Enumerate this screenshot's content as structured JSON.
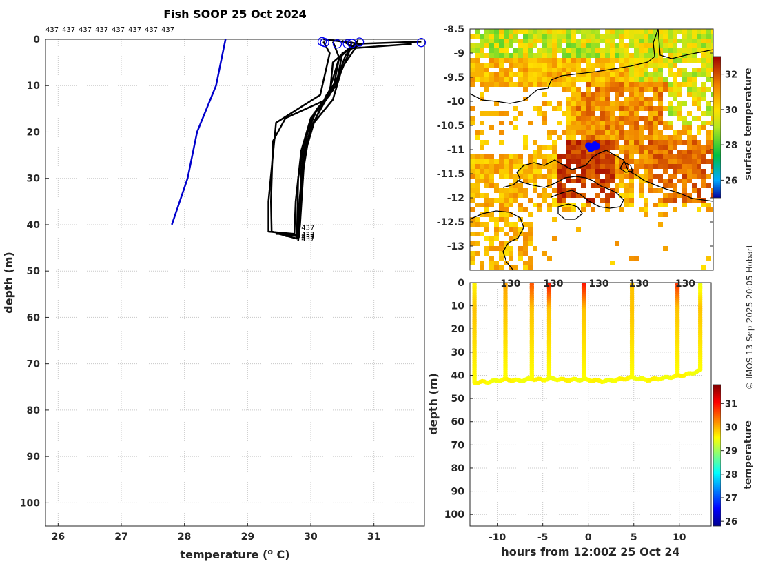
{
  "figure_title": "Fish SOOP 25 Oct 2024",
  "credit": "© IMOS 13-Sep-2025 20:05 Hobart",
  "chart_data": [
    {
      "id": "profile",
      "type": "line",
      "title": "Fish SOOP 25 Oct 2024",
      "xlabel": "temperature (",
      "xlabel_sup": "o",
      "xlabel_tail": " C)",
      "ylabel": "depth (m)",
      "xlim": [
        25.8,
        31.8
      ],
      "ylim": [
        105,
        0
      ],
      "xticks": [
        26,
        27,
        28,
        29,
        30,
        31
      ],
      "yticks": [
        0,
        10,
        20,
        30,
        40,
        50,
        60,
        70,
        80,
        90,
        100
      ],
      "top_labels": [
        "437",
        "437",
        "437",
        "437",
        "437",
        "437",
        "437",
        "437"
      ],
      "end_label": "437",
      "climatology": {
        "name": "climatology",
        "color": "#0000cc",
        "points": [
          [
            28.65,
            0
          ],
          [
            28.5,
            10
          ],
          [
            28.2,
            20
          ],
          [
            28.05,
            30
          ],
          [
            27.8,
            40
          ]
        ]
      },
      "casts": [
        {
          "points": [
            [
              30.2,
              0.5
            ],
            [
              30.3,
              3
            ],
            [
              30.15,
              12
            ],
            [
              29.8,
              15
            ],
            [
              29.45,
              18
            ],
            [
              29.4,
              25
            ],
            [
              29.33,
              35
            ],
            [
              29.33,
              41.5
            ],
            [
              29.75,
              42
            ]
          ]
        },
        {
          "points": [
            [
              30.35,
              0.5
            ],
            [
              30.45,
              4
            ],
            [
              30.25,
              13
            ],
            [
              29.6,
              17
            ],
            [
              29.4,
              22
            ],
            [
              29.37,
              35
            ],
            [
              29.38,
              41.5
            ],
            [
              29.78,
              42.5
            ]
          ]
        },
        {
          "points": [
            [
              30.2,
              0
            ],
            [
              30.8,
              1
            ],
            [
              30.5,
              3
            ],
            [
              30.4,
              10
            ],
            [
              30.1,
              15
            ],
            [
              29.95,
              20
            ],
            [
              29.85,
              28
            ],
            [
              29.82,
              42
            ],
            [
              29.6,
              42.5
            ]
          ]
        },
        {
          "points": [
            [
              31.75,
              0.5
            ],
            [
              30.7,
              1
            ],
            [
              30.45,
              4
            ],
            [
              30.35,
              11
            ],
            [
              30.05,
              16
            ],
            [
              29.9,
              22
            ],
            [
              29.8,
              30
            ],
            [
              29.78,
              43
            ],
            [
              29.5,
              42
            ]
          ]
        },
        {
          "points": [
            [
              31.6,
              1.0
            ],
            [
              30.6,
              2
            ],
            [
              30.35,
              5
            ],
            [
              30.3,
              12
            ],
            [
              30.0,
              17
            ],
            [
              29.85,
              24
            ],
            [
              29.76,
              35
            ],
            [
              29.74,
              42
            ],
            [
              29.45,
              42
            ]
          ]
        },
        {
          "points": [
            [
              30.5,
              0.3
            ],
            [
              30.7,
              2
            ],
            [
              30.5,
              6
            ],
            [
              30.35,
              13
            ],
            [
              30.05,
              18
            ],
            [
              29.9,
              25
            ],
            [
              29.83,
              40
            ],
            [
              29.8,
              43.5
            ]
          ]
        },
        {
          "points": [
            [
              30.65,
              0.5
            ],
            [
              30.6,
              3
            ],
            [
              30.45,
              8
            ],
            [
              30.2,
              14
            ],
            [
              30.0,
              19
            ],
            [
              29.88,
              26
            ],
            [
              29.8,
              38
            ],
            [
              29.82,
              42.8
            ]
          ]
        },
        {
          "points": [
            [
              30.75,
              0.2
            ],
            [
              30.55,
              3.5
            ],
            [
              30.4,
              9
            ],
            [
              30.25,
              12
            ],
            [
              29.98,
              20
            ],
            [
              29.86,
              30
            ],
            [
              29.8,
              43.2
            ]
          ]
        }
      ],
      "start_markers": [
        [
          30.18,
          0.5
        ],
        [
          30.22,
          0.7
        ],
        [
          30.42,
          1.0
        ],
        [
          30.58,
          1.0
        ],
        [
          30.65,
          0.9
        ],
        [
          30.77,
          0.6
        ],
        [
          31.75,
          0.7
        ]
      ]
    },
    {
      "id": "map",
      "type": "heatmap",
      "title": "",
      "colorbar_label": "surface temperature",
      "colorbar_range": [
        25.0,
        33.0
      ],
      "colorbar_ticks": [
        26,
        28,
        30,
        32
      ],
      "lon_range": [
        129.05,
        131.45
      ],
      "lat_range": [
        -13.5,
        -8.5
      ],
      "yticks": [
        -8.5,
        -9,
        -9.5,
        -10,
        -10.5,
        -11,
        -11.5,
        -12,
        -12.5,
        -13
      ],
      "track": [
        [
          130.22,
          -10.92
        ],
        [
          130.24,
          -10.98
        ],
        [
          130.26,
          -10.96
        ],
        [
          130.28,
          -10.9
        ],
        [
          130.3,
          -10.93
        ]
      ]
    },
    {
      "id": "section",
      "type": "scatter",
      "xlabel": "hours from 12:00Z 25 Oct 24",
      "ylabel": "depth (m)",
      "xlim": [
        -13,
        13.5
      ],
      "ylim": [
        105,
        0
      ],
      "xticks": [
        -10,
        -5,
        0,
        5,
        10
      ],
      "yticks": [
        0,
        10,
        20,
        30,
        40,
        50,
        60,
        70,
        80,
        90,
        100
      ],
      "top_tick_labels": [
        "130",
        "130",
        "130",
        "130",
        "130"
      ],
      "colorbar_label": "temperature",
      "colorbar_range": [
        25.8,
        31.8
      ],
      "colorbar_ticks": [
        26,
        27,
        28,
        29,
        30,
        31
      ],
      "casts": [
        {
          "time": -12.5,
          "bottom": 43,
          "surface_temp": 29.6
        },
        {
          "time": -9.1,
          "bottom": 41,
          "surface_temp": 30.1
        },
        {
          "time": -6.2,
          "bottom": 41,
          "surface_temp": 30.6
        },
        {
          "time": -4.3,
          "bottom": 41,
          "surface_temp": 31.0
        },
        {
          "time": -0.5,
          "bottom": 42,
          "surface_temp": 31.0
        },
        {
          "time": 4.8,
          "bottom": 41,
          "surface_temp": 29.9
        },
        {
          "time": 9.8,
          "bottom": 40,
          "surface_temp": 30.8
        },
        {
          "time": 12.3,
          "bottom": 38,
          "surface_temp": 29.4
        }
      ],
      "bottom_track": [
        [
          -12.5,
          43
        ],
        [
          -11,
          42.8
        ],
        [
          -9.2,
          41.8
        ],
        [
          -7.5,
          42.3
        ],
        [
          -6.2,
          41.5
        ],
        [
          -5,
          42
        ],
        [
          -4.3,
          41.3
        ],
        [
          -2.5,
          42
        ],
        [
          -0.5,
          41.8
        ],
        [
          1.5,
          42.5
        ],
        [
          3,
          42
        ],
        [
          4.8,
          41
        ],
        [
          6.5,
          42
        ],
        [
          8.2,
          41.2
        ],
        [
          9.8,
          40.3
        ],
        [
          11,
          39.5
        ],
        [
          12.3,
          38
        ]
      ]
    }
  ]
}
